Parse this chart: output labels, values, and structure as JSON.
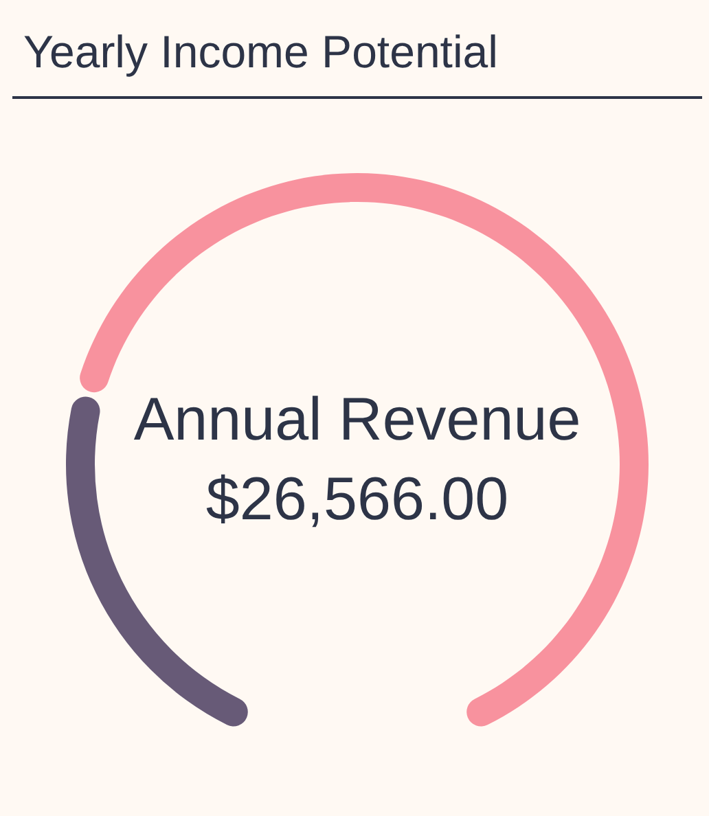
{
  "chart_data": {
    "type": "donut",
    "title": "Yearly Income Potential",
    "categories": [
      null,
      null
    ],
    "values": [
      26,
      74
    ],
    "colors": [
      "#675a77",
      "#f8929e"
    ],
    "annotations": [
      "Annual Revenue",
      "$26,566.00"
    ]
  }
}
